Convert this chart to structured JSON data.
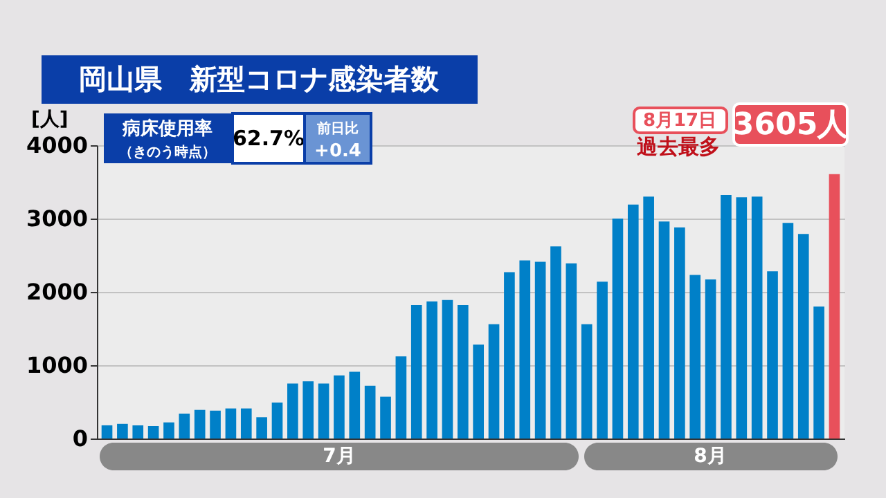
{
  "chart_data": {
    "type": "bar",
    "title": "岡山県　新型コロナ感染者数",
    "ylabel": "[人]",
    "categories": [
      null,
      null,
      null,
      null,
      null,
      null,
      null,
      null,
      null,
      null,
      null,
      null,
      null,
      null,
      null,
      null,
      null,
      null,
      null,
      null,
      null,
      null,
      null,
      null,
      null,
      null,
      null,
      null,
      null,
      null,
      null,
      null,
      null,
      null,
      null,
      null,
      null,
      null,
      null,
      null,
      null,
      null,
      null,
      null,
      null,
      null,
      null,
      null
    ],
    "values": [
      180,
      200,
      180,
      170,
      220,
      340,
      390,
      380,
      410,
      410,
      290,
      490,
      750,
      780,
      750,
      860,
      910,
      720,
      570,
      1120,
      1820,
      1870,
      1890,
      1820,
      1280,
      1560,
      2270,
      2430,
      2410,
      2620,
      2390,
      1560,
      2140,
      3000,
      3190,
      3300,
      2960,
      2880,
      2230,
      2170,
      3320,
      3290,
      3300,
      2280,
      2940,
      2790,
      1800,
      3605
    ],
    "colors": [
      "#0080c8",
      "#0080c8",
      "#0080c8",
      "#0080c8",
      "#0080c8",
      "#0080c8",
      "#0080c8",
      "#0080c8",
      "#0080c8",
      "#0080c8",
      "#0080c8",
      "#0080c8",
      "#0080c8",
      "#0080c8",
      "#0080c8",
      "#0080c8",
      "#0080c8",
      "#0080c8",
      "#0080c8",
      "#0080c8",
      "#0080c8",
      "#0080c8",
      "#0080c8",
      "#0080c8",
      "#0080c8",
      "#0080c8",
      "#0080c8",
      "#0080c8",
      "#0080c8",
      "#0080c8",
      "#0080c8",
      "#0080c8",
      "#0080c8",
      "#0080c8",
      "#0080c8",
      "#0080c8",
      "#0080c8",
      "#0080c8",
      "#0080c8",
      "#0080c8",
      "#0080c8",
      "#0080c8",
      "#0080c8",
      "#0080c8",
      "#0080c8",
      "#0080c8",
      "#0080c8",
      "#e8505b"
    ],
    "ylim": [
      0,
      4000
    ],
    "yticks": [
      0,
      1000,
      2000,
      3000,
      4000
    ],
    "grid": "y",
    "annotations": [
      "病床使用率",
      "（きのう時点）",
      "62.7%",
      "前日比",
      "+0.4",
      "8月17日",
      "3605人",
      "過去最多",
      "7月",
      "8月"
    ]
  }
}
